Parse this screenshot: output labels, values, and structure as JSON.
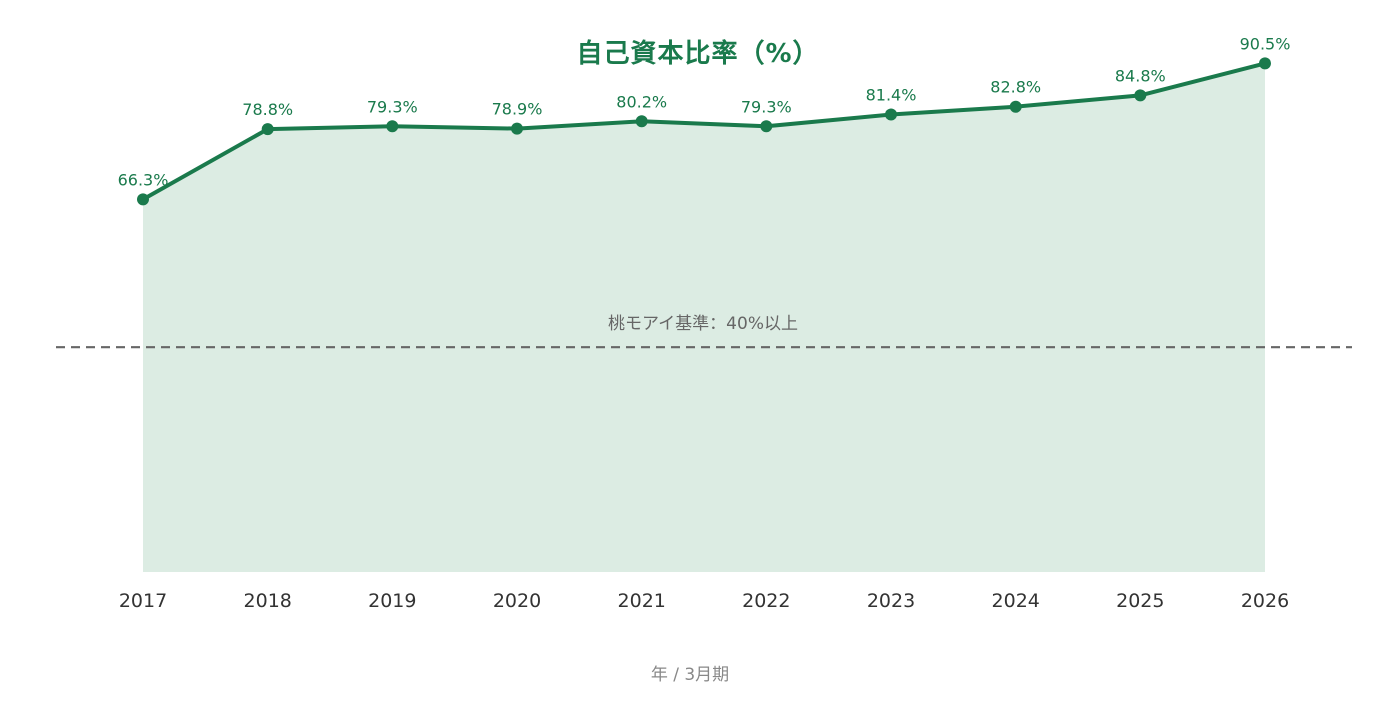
{
  "chart_data": {
    "type": "area",
    "title": "自己資本比率（%）",
    "xlabel": "年 / 3月期",
    "ylabel": "",
    "x": [
      "2017",
      "2018",
      "2019",
      "2020",
      "2021",
      "2022",
      "2023",
      "2024",
      "2025",
      "2026"
    ],
    "series": [
      {
        "values": [
          66.3,
          78.8,
          79.3,
          78.9,
          80.2,
          79.3,
          81.4,
          82.8,
          84.8,
          90.5
        ],
        "labels": [
          "66.3%",
          "78.8%",
          "79.3%",
          "78.9%",
          "80.2%",
          "79.3%",
          "81.4%",
          "82.8%",
          "84.8%",
          "90.5%"
        ]
      }
    ],
    "reference_line": {
      "value": 40,
      "label": "桃モアイ基準：40%以上",
      "style": "dashed"
    },
    "ylim": [
      0,
      100
    ],
    "grid": false,
    "colors": {
      "line": "#1a7a4c",
      "area": "#dcece3",
      "reference": "#666666",
      "title": "#1a7a4c",
      "labels": "#1a7a4c"
    }
  }
}
